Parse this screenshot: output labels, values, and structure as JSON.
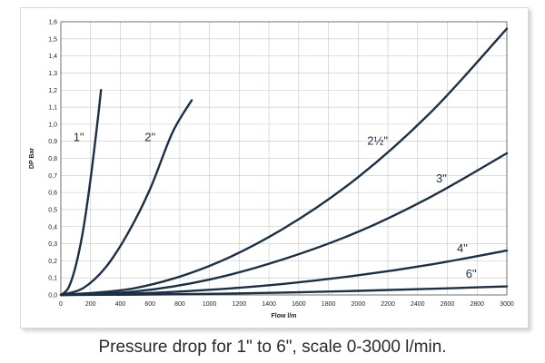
{
  "caption": "Pressure drop for 1\" to 6\", scale 0-3000 l/min.",
  "chart_data": {
    "type": "line",
    "title": "",
    "xlabel": "Flow l/m",
    "ylabel": "DP Bar",
    "xlim": [
      0,
      3000
    ],
    "ylim": [
      0,
      1.6
    ],
    "x_ticks": [
      "0",
      "200",
      "400",
      "600",
      "800",
      "1000",
      "1200",
      "1400",
      "1600",
      "1800",
      "2000",
      "2200",
      "2400",
      "2600",
      "2800",
      "3000"
    ],
    "y_ticks": [
      "0,0",
      "0,1",
      "0,2",
      "0,3",
      "0,4",
      "0,5",
      "0,6",
      "0,7",
      "0,8",
      "0,9",
      "1,0",
      "1,1",
      "1,2",
      "1,3",
      "1,4",
      "1,5",
      "1,6"
    ],
    "grid": true,
    "line_color": "#1b2f45",
    "series": [
      {
        "name": "1\"",
        "x": [
          0,
          50,
          100,
          150,
          200,
          250,
          270
        ],
        "y": [
          0,
          0.04,
          0.17,
          0.38,
          0.68,
          1.04,
          1.2
        ]
      },
      {
        "name": "2\"",
        "x": [
          0,
          150,
          300,
          450,
          600,
          750,
          880
        ],
        "y": [
          0,
          0.04,
          0.16,
          0.36,
          0.62,
          0.95,
          1.14
        ]
      },
      {
        "name": "2½\"",
        "x": [
          0,
          500,
          1000,
          1500,
          2000,
          2500,
          3000
        ],
        "y": [
          0,
          0.04,
          0.17,
          0.39,
          0.69,
          1.08,
          1.56
        ]
      },
      {
        "name": "3\"",
        "x": [
          0,
          500,
          1000,
          1500,
          2000,
          2500,
          3000
        ],
        "y": [
          0,
          0.02,
          0.09,
          0.21,
          0.37,
          0.58,
          0.83
        ]
      },
      {
        "name": "4\"",
        "x": [
          0,
          500,
          1000,
          1500,
          2000,
          2500,
          3000
        ],
        "y": [
          0,
          0.008,
          0.03,
          0.065,
          0.115,
          0.18,
          0.26
        ]
      },
      {
        "name": "6\"",
        "x": [
          0,
          500,
          1000,
          1500,
          2000,
          2500,
          3000
        ],
        "y": [
          0,
          0.002,
          0.006,
          0.014,
          0.024,
          0.036,
          0.05
        ]
      }
    ],
    "label_positions": [
      {
        "series": "1\"",
        "x": 120,
        "y": 0.9
      },
      {
        "series": "2\"",
        "x": 600,
        "y": 0.9
      },
      {
        "series": "2½\"",
        "x": 2130,
        "y": 0.88
      },
      {
        "series": "3\"",
        "x": 2560,
        "y": 0.66
      },
      {
        "series": "4\"",
        "x": 2700,
        "y": 0.25
      },
      {
        "series": "6\"",
        "x": 2760,
        "y": 0.1
      }
    ]
  }
}
